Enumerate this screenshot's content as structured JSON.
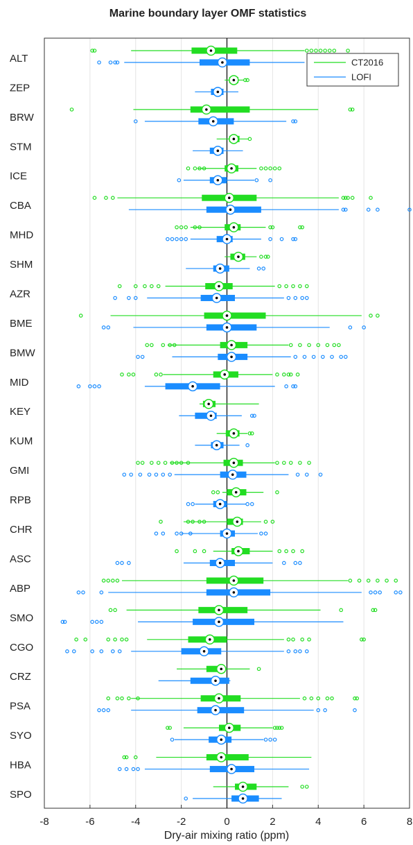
{
  "chart_data": {
    "type": "boxplot",
    "title": "Marine boundary layer OMF statistics",
    "xlabel": "Dry-air mixing ratio (ppm)",
    "xlim": [
      -8,
      8
    ],
    "xticks": [
      -8,
      -6,
      -4,
      -2,
      0,
      2,
      4,
      6,
      8
    ],
    "grid": true,
    "legend": "upper right",
    "categories": [
      "ALT",
      "ZEP",
      "BRW",
      "STM",
      "ICE",
      "CBA",
      "MHD",
      "SHM",
      "AZR",
      "BME",
      "BMW",
      "MID",
      "KEY",
      "KUM",
      "GMI",
      "RPB",
      "CHR",
      "ASC",
      "ABP",
      "SMO",
      "CGO",
      "CRZ",
      "PSA",
      "SYO",
      "HBA",
      "SPO"
    ],
    "series": [
      {
        "name": "CT2016",
        "color": "#22dd22",
        "whislo": [
          -4.2,
          -0.1,
          -4.1,
          -0.45,
          -1.3,
          -4.8,
          -1.6,
          -0.1,
          -2.7,
          -5.1,
          -2.6,
          -2.8,
          -1.2,
          -0.45,
          -2.5,
          -0.2,
          -1.9,
          -0.6,
          -4.6,
          -4.4,
          -3.5,
          -2.2,
          -4.2,
          -1.9,
          -3.1,
          -0.6
        ],
        "q1": [
          -1.55,
          0.1,
          -1.6,
          0.1,
          -0.1,
          -1.1,
          -0.1,
          0.15,
          -0.95,
          -1.0,
          -0.3,
          -0.6,
          -1.05,
          -0.05,
          -0.15,
          0.0,
          0.0,
          0.2,
          -0.9,
          -1.25,
          -1.7,
          -0.9,
          -1.15,
          -0.35,
          -0.9,
          0.35
        ],
        "median": [
          -0.7,
          0.3,
          -0.9,
          0.3,
          0.2,
          0.1,
          0.3,
          0.5,
          -0.35,
          0.0,
          0.2,
          -0.1,
          -0.8,
          0.3,
          0.3,
          0.4,
          0.45,
          0.5,
          0.3,
          -0.35,
          -0.75,
          -0.25,
          -0.35,
          0.1,
          -0.25,
          0.7
        ],
        "q3": [
          0.45,
          0.5,
          1.0,
          0.55,
          0.5,
          1.3,
          0.6,
          0.8,
          0.25,
          1.7,
          0.9,
          0.5,
          -0.5,
          0.55,
          0.7,
          0.85,
          0.7,
          1.0,
          1.6,
          0.9,
          0.0,
          -0.15,
          0.6,
          0.6,
          0.95,
          1.3
        ],
        "whishi": [
          3.4,
          0.75,
          4.0,
          0.95,
          1.3,
          4.9,
          1.7,
          1.3,
          2.1,
          5.9,
          2.7,
          2.0,
          1.4,
          0.9,
          2.1,
          1.6,
          1.5,
          2.0,
          5.3,
          4.1,
          2.5,
          1.0,
          3.2,
          2.0,
          3.7,
          2.7
        ],
        "fliers": [
          [
            -5.9,
            -5.8,
            3.5,
            3.7,
            3.9,
            4.1,
            4.3,
            4.5,
            4.7,
            5.3
          ],
          [
            0.8,
            0.9
          ],
          [
            -6.8,
            5.4,
            5.5
          ],
          [
            1.0
          ],
          [
            -1.7,
            -1.4,
            -1.2,
            -1.0,
            1.5,
            1.7,
            1.9,
            2.1,
            2.3
          ],
          [
            -5.8,
            -5.3,
            -5.0,
            5.1,
            5.2,
            5.3,
            5.5,
            6.3
          ],
          [
            -2.2,
            -2.0,
            -1.8,
            -1.4,
            -1.2,
            1.9,
            2.0,
            3.2,
            3.3
          ],
          [
            1.5,
            1.7,
            1.8
          ],
          [
            -4.7,
            -4.0,
            -3.6,
            -3.3,
            -3.0,
            2.3,
            2.6,
            2.9,
            3.2,
            3.5
          ],
          [
            -6.4,
            6.3,
            6.6
          ],
          [
            -3.5,
            -3.3,
            -2.8,
            -2.5,
            -2.3,
            2.8,
            3.2,
            3.6,
            4.0,
            4.4,
            4.7,
            4.9
          ],
          [
            -4.6,
            -4.3,
            -4.1,
            -3.1,
            -2.9,
            2.2,
            2.5,
            2.7,
            2.8,
            3.1
          ],
          [],
          [
            1.0,
            1.1
          ],
          [
            -3.9,
            -3.7,
            -3.3,
            -3.0,
            -2.7,
            -2.4,
            -2.2,
            -2.0,
            -1.7,
            2.2,
            2.5,
            2.8,
            3.2,
            3.6
          ],
          [
            -0.6,
            -0.4,
            2.2
          ],
          [
            -2.9,
            -1.7,
            -1.5,
            -1.2,
            -1.0,
            1.7,
            2.0
          ],
          [
            -2.2,
            -1.4,
            -1.0,
            2.3,
            2.6,
            2.9,
            3.3
          ],
          [
            -5.4,
            -5.2,
            -5.0,
            -4.8,
            5.4,
            5.8,
            6.2,
            6.6,
            7.0,
            7.4
          ],
          [
            -5.1,
            -4.9,
            5.0,
            6.4,
            6.5
          ],
          [
            -6.6,
            -6.2,
            -5.2,
            -4.9,
            -4.6,
            -4.4,
            2.7,
            2.9,
            3.3,
            3.6,
            5.9,
            6.0
          ],
          [
            1.4
          ],
          [
            -5.2,
            -4.8,
            -4.6,
            -4.3,
            -3.9,
            3.4,
            3.7,
            4.0,
            4.4,
            4.6,
            5.6,
            5.7
          ],
          [
            -2.6,
            -2.5,
            2.1,
            2.2,
            2.3,
            2.4
          ],
          [
            -4.5,
            -4.4,
            -4.0
          ],
          [
            3.3,
            3.5
          ]
        ]
      },
      {
        "name": "LOFI",
        "color": "#1a8cff",
        "whislo": [
          -4.5,
          -1.4,
          -3.6,
          -1.5,
          -1.9,
          -4.3,
          -1.6,
          -1.8,
          -3.5,
          -4.1,
          -2.4,
          -3.6,
          -2.1,
          -1.4,
          -2.3,
          -1.4,
          -2.0,
          -1.9,
          -5.2,
          -3.9,
          -4.2,
          -3.0,
          -4.2,
          -2.3,
          -3.6,
          -1.5
        ],
        "q1": [
          -1.2,
          -0.7,
          -1.25,
          -0.75,
          -0.75,
          -0.9,
          -0.45,
          -0.6,
          -1.15,
          -0.9,
          -0.4,
          -2.7,
          -1.4,
          -0.7,
          -0.3,
          -0.6,
          -0.3,
          -0.75,
          -0.9,
          -1.5,
          -2.0,
          -1.6,
          -1.3,
          -0.8,
          -0.75,
          0.2
        ],
        "median": [
          -0.2,
          -0.4,
          -0.6,
          -0.4,
          -0.4,
          0.15,
          0.0,
          -0.3,
          -0.45,
          0.0,
          0.2,
          -1.5,
          -0.7,
          -0.45,
          0.25,
          -0.3,
          0.0,
          -0.3,
          0.3,
          -0.35,
          -1.0,
          -0.5,
          -0.5,
          -0.25,
          0.2,
          0.7
        ],
        "q3": [
          1.0,
          -0.15,
          0.3,
          -0.15,
          0.0,
          1.5,
          0.25,
          0.1,
          0.35,
          1.3,
          0.9,
          -0.3,
          -0.45,
          -0.15,
          0.85,
          0.0,
          0.35,
          0.35,
          1.9,
          1.2,
          -0.25,
          0.1,
          0.75,
          0.2,
          1.2,
          1.4
        ],
        "whishi": [
          3.4,
          0.5,
          2.6,
          0.7,
          1.2,
          4.9,
          1.5,
          1.0,
          2.5,
          4.5,
          2.8,
          2.1,
          0.65,
          0.55,
          2.7,
          0.85,
          1.35,
          2.0,
          5.9,
          5.1,
          2.5,
          0.15,
          3.8,
          1.6,
          3.6,
          2.4
        ],
        "fliers": [
          [
            -5.6,
            -5.1,
            -4.9,
            -4.8
          ],
          [],
          [
            -4.0,
            2.9,
            3.0
          ],
          [],
          [
            -2.1,
            1.3,
            1.9
          ],
          [
            5.1,
            5.2,
            6.2,
            6.6,
            8.0
          ],
          [
            -2.6,
            -2.4,
            -2.2,
            -2.0,
            -1.8,
            1.9,
            2.4,
            2.9,
            3.0
          ],
          [
            1.4,
            1.6
          ],
          [
            -4.9,
            -4.3,
            -4.0,
            2.7,
            3.0,
            3.3,
            3.5
          ],
          [
            -5.4,
            -5.2,
            5.4,
            6.0
          ],
          [
            -3.9,
            -3.7,
            3.0,
            3.4,
            3.8,
            4.2,
            4.6,
            5.0,
            5.2
          ],
          [
            -6.5,
            -6.0,
            -5.8,
            -5.6,
            2.6,
            2.9,
            3.0
          ],
          [
            1.1,
            1.2
          ],
          [
            0.9
          ],
          [
            -4.5,
            -4.2,
            -3.8,
            -3.4,
            -3.1,
            -2.8,
            -2.5,
            3.1,
            3.5,
            4.1
          ],
          [
            -1.7,
            -1.5,
            0.9,
            1.1
          ],
          [
            -3.1,
            -2.8,
            -2.2,
            -2.0,
            -1.6,
            1.5,
            1.7
          ],
          [
            -4.8,
            -4.6,
            -4.3,
            2.5,
            3.0,
            3.2
          ],
          [
            -6.5,
            -6.3,
            -5.5,
            6.3,
            6.5,
            6.7,
            7.4,
            7.6
          ],
          [
            -7.2,
            -7.1,
            -5.9,
            -5.7,
            -5.5
          ],
          [
            -7.0,
            -6.7,
            -5.9,
            -5.5,
            -5.0,
            -4.7,
            2.7,
            3.0,
            3.2,
            3.5
          ],
          [],
          [
            -5.6,
            -5.4,
            -5.2,
            4.0,
            4.3,
            5.6
          ],
          [
            -2.4,
            1.7,
            1.9,
            2.1
          ],
          [
            -4.7,
            -4.4,
            -4.1,
            -3.9
          ],
          [
            -1.8
          ]
        ]
      }
    ]
  }
}
